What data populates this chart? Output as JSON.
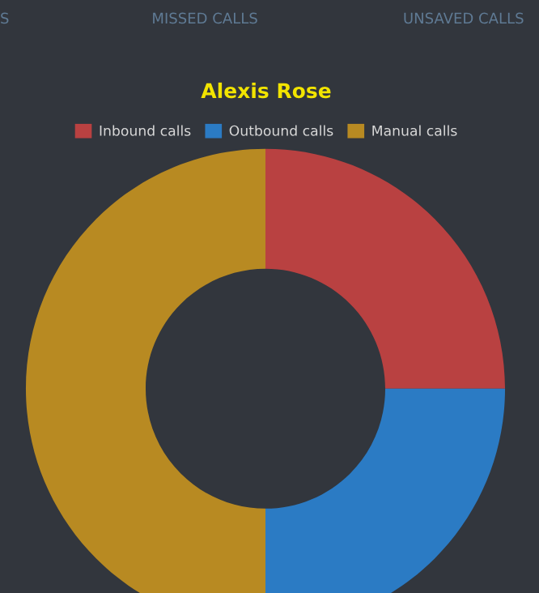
{
  "chart_data": {
    "type": "donut",
    "title": "Alexis Rose",
    "categories": [
      "Inbound calls",
      "Outbound calls",
      "Manual calls"
    ],
    "values": [
      25,
      25,
      50
    ],
    "colors": [
      "#b94141",
      "#2b7bc4",
      "#b88a22"
    ],
    "legend": "top",
    "annotations": [
      "S",
      "MISSED CALLS",
      "UNSAVED CALLS"
    ]
  }
}
